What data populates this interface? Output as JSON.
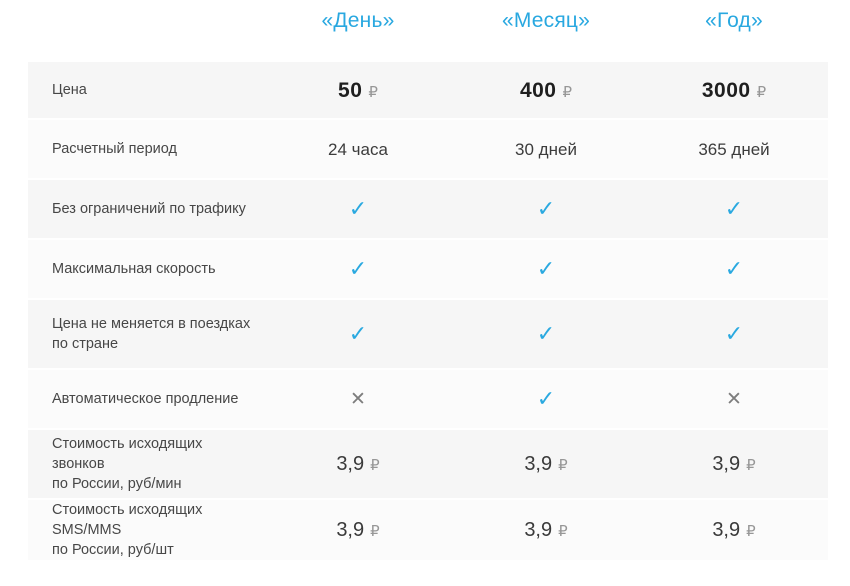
{
  "table": {
    "columns": [
      "«День»",
      "«Месяц»",
      "«Год»"
    ],
    "accent_color": "#29a8e0",
    "check_color": "#2aa9e0",
    "cross_color": "#7d7d7d",
    "currency_symbol": "₽",
    "check_glyph": "✓",
    "cross_glyph": "✕",
    "rows": [
      {
        "label_lines": [
          "Цена"
        ],
        "type": "price",
        "values": [
          "50",
          "400",
          "3000"
        ]
      },
      {
        "label_lines": [
          "Расчетный период"
        ],
        "type": "text",
        "values": [
          "24 часа",
          "30 дней",
          "365 дней"
        ]
      },
      {
        "label_lines": [
          "Без ограничений по трафику"
        ],
        "type": "mark",
        "values": [
          "check",
          "check",
          "check"
        ]
      },
      {
        "label_lines": [
          "Максимальная скорость"
        ],
        "type": "mark",
        "values": [
          "check",
          "check",
          "check"
        ]
      },
      {
        "label_lines": [
          "Цена не меняется в поездках",
          "по стране"
        ],
        "type": "mark",
        "values": [
          "check",
          "check",
          "check"
        ]
      },
      {
        "label_lines": [
          "Автоматическое продление"
        ],
        "type": "mark",
        "values": [
          "cross",
          "check",
          "cross"
        ]
      },
      {
        "label_lines": [
          "Стоимость исходящих звонков",
          "по России, руб/мин"
        ],
        "type": "rate",
        "values": [
          "3,9",
          "3,9",
          "3,9"
        ]
      },
      {
        "label_lines": [
          "Стоимость исходящих SMS/MMS",
          "по России, руб/шт"
        ],
        "type": "rate",
        "values": [
          "3,9",
          "3,9",
          "3,9"
        ]
      }
    ]
  }
}
